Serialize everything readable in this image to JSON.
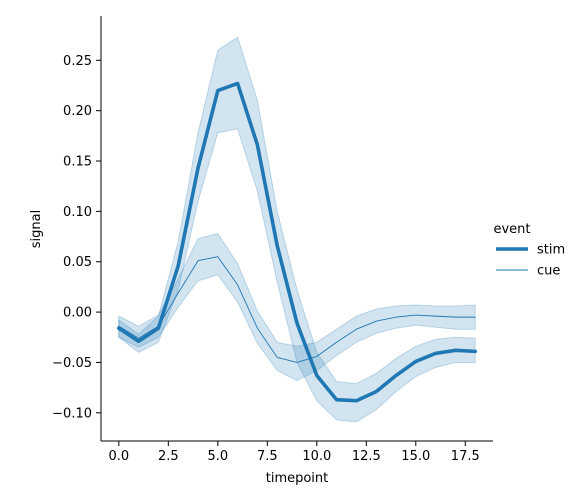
{
  "chart_data": {
    "type": "line",
    "xlabel": "timepoint",
    "ylabel": "signal",
    "xlim": [
      -0.9,
      18.9
    ],
    "ylim": [
      -0.128,
      0.294
    ],
    "xticks": [
      0.0,
      2.5,
      5.0,
      7.5,
      10.0,
      12.5,
      15.0,
      17.5
    ],
    "xtick_labels": [
      "0.0",
      "2.5",
      "5.0",
      "7.5",
      "10.0",
      "12.5",
      "15.0",
      "17.5"
    ],
    "yticks": [
      -0.1,
      -0.05,
      0.0,
      0.05,
      0.1,
      0.15,
      0.2,
      0.25
    ],
    "ytick_labels": [
      "−0.10",
      "−0.05",
      "0.00",
      "0.05",
      "0.10",
      "0.15",
      "0.20",
      "0.25"
    ],
    "grid": false,
    "legend": {
      "title": "event",
      "placement": "right"
    },
    "x": [
      0,
      1,
      2,
      3,
      4,
      5,
      6,
      7,
      8,
      9,
      10,
      11,
      12,
      13,
      14,
      15,
      16,
      17,
      18
    ],
    "series": [
      {
        "name": "stim",
        "color": "#1f77b4",
        "line": "thick",
        "values": [
          -0.016,
          -0.029,
          -0.016,
          0.046,
          0.143,
          0.22,
          0.227,
          0.166,
          0.066,
          -0.011,
          -0.063,
          -0.087,
          -0.088,
          -0.079,
          -0.063,
          -0.049,
          -0.041,
          -0.038,
          -0.039
        ],
        "ci_low": [
          -0.025,
          -0.04,
          -0.03,
          0.022,
          0.11,
          0.178,
          0.182,
          0.12,
          0.03,
          -0.05,
          -0.088,
          -0.107,
          -0.109,
          -0.097,
          -0.079,
          -0.064,
          -0.055,
          -0.05,
          -0.05
        ],
        "ci_high": [
          -0.008,
          -0.022,
          -0.004,
          0.07,
          0.178,
          0.26,
          0.273,
          0.21,
          0.1,
          0.022,
          -0.04,
          -0.069,
          -0.071,
          -0.061,
          -0.046,
          -0.034,
          -0.027,
          -0.025,
          -0.026
        ]
      },
      {
        "name": "cue",
        "color": "#1f77b4",
        "line": "thin",
        "values": [
          -0.014,
          -0.026,
          -0.014,
          0.019,
          0.051,
          0.055,
          0.027,
          -0.016,
          -0.045,
          -0.05,
          -0.044,
          -0.03,
          -0.017,
          -0.009,
          -0.005,
          -0.003,
          -0.004,
          -0.005,
          -0.005
        ],
        "ci_low": [
          -0.025,
          -0.035,
          -0.025,
          0.005,
          0.031,
          0.037,
          0.01,
          -0.031,
          -0.058,
          -0.068,
          -0.058,
          -0.043,
          -0.03,
          -0.021,
          -0.016,
          -0.013,
          -0.015,
          -0.017,
          -0.017
        ],
        "ci_high": [
          -0.004,
          -0.014,
          -0.003,
          0.033,
          0.073,
          0.078,
          0.048,
          0.001,
          -0.03,
          -0.034,
          -0.03,
          -0.017,
          -0.004,
          0.003,
          0.006,
          0.007,
          0.006,
          0.006,
          0.007
        ]
      }
    ]
  }
}
